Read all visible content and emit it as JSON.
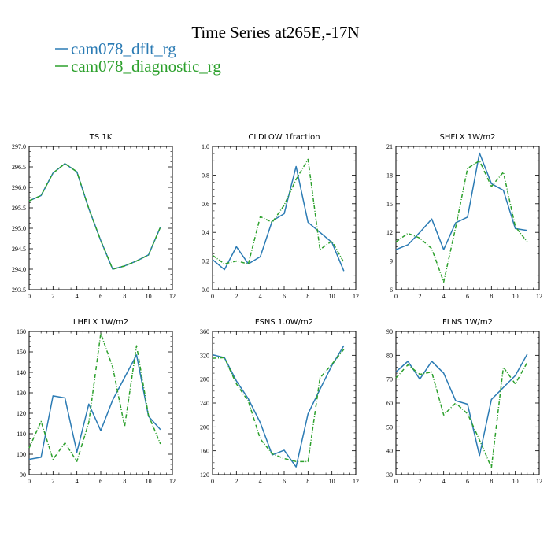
{
  "figure": {
    "title": "Time Series at265E,-17N",
    "legend": [
      {
        "name": "cam078_dflt_rg",
        "color": "#2b7bb4",
        "dash": "solid"
      },
      {
        "name": "cam078_diagnostic_rg",
        "color": "#2ca02c",
        "dash": "dashdot"
      }
    ]
  },
  "chart_data": [
    {
      "type": "line",
      "title": "TS 1K",
      "x": [
        0,
        1,
        2,
        3,
        4,
        5,
        6,
        7,
        8,
        9,
        10,
        11
      ],
      "xlim": [
        0,
        12
      ],
      "xticks": [
        0,
        2,
        4,
        6,
        8,
        10,
        12
      ],
      "ylim": [
        293.5,
        297.0
      ],
      "yticks": [
        "293.5",
        "294.0",
        "294.5",
        "295.0",
        "295.5",
        "296.0",
        "296.5",
        "297.0"
      ],
      "series": [
        {
          "name": "cam078_dflt_rg",
          "values": [
            295.67,
            295.8,
            296.35,
            296.58,
            296.38,
            295.48,
            294.7,
            294.0,
            294.08,
            294.2,
            294.35,
            295.03
          ]
        },
        {
          "name": "cam078_diagnostic_rg",
          "values": [
            295.67,
            295.8,
            296.35,
            296.58,
            296.38,
            295.48,
            294.7,
            294.0,
            294.08,
            294.2,
            294.35,
            295.03
          ]
        }
      ]
    },
    {
      "type": "line",
      "title": "CLDLOW 1fraction",
      "x": [
        0,
        1,
        2,
        3,
        4,
        5,
        6,
        7,
        8,
        9,
        10,
        11
      ],
      "xlim": [
        0,
        12
      ],
      "xticks": [
        0,
        2,
        4,
        6,
        8,
        10,
        12
      ],
      "ylim": [
        0.0,
        1.0
      ],
      "yticks": [
        "0.0",
        "0.2",
        "0.4",
        "0.6",
        "0.8",
        "1.0"
      ],
      "series": [
        {
          "name": "cam078_dflt_rg",
          "values": [
            0.21,
            0.14,
            0.3,
            0.18,
            0.23,
            0.48,
            0.53,
            0.86,
            0.47,
            0.4,
            0.33,
            0.13
          ]
        },
        {
          "name": "cam078_diagnostic_rg",
          "values": [
            0.24,
            0.18,
            0.2,
            0.18,
            0.51,
            0.47,
            0.59,
            0.77,
            0.91,
            0.28,
            0.34,
            0.19
          ]
        }
      ]
    },
    {
      "type": "line",
      "title": "SHFLX 1W/m2",
      "x": [
        0,
        1,
        2,
        3,
        4,
        5,
        6,
        7,
        8,
        9,
        10,
        11
      ],
      "xlim": [
        0,
        12
      ],
      "xticks": [
        0,
        2,
        4,
        6,
        8,
        10,
        12
      ],
      "ylim": [
        6,
        21
      ],
      "yticks": [
        "6",
        "9",
        "12",
        "15",
        "18",
        "21"
      ],
      "series": [
        {
          "name": "cam078_dflt_rg",
          "values": [
            10.2,
            10.7,
            12.0,
            13.4,
            10.2,
            13.0,
            13.6,
            20.3,
            17.1,
            16.4,
            12.4,
            12.2
          ]
        },
        {
          "name": "cam078_diagnostic_rg",
          "values": [
            11.0,
            11.9,
            11.4,
            10.3,
            6.8,
            12.5,
            18.7,
            19.5,
            16.8,
            18.3,
            12.6,
            11.0
          ]
        }
      ]
    },
    {
      "type": "line",
      "title": "LHFLX 1W/m2",
      "x": [
        0,
        1,
        2,
        3,
        4,
        5,
        6,
        7,
        8,
        9,
        10,
        11
      ],
      "xlim": [
        0,
        12
      ],
      "xticks": [
        0,
        2,
        4,
        6,
        8,
        10,
        12
      ],
      "ylim": [
        90,
        160
      ],
      "yticks": [
        "90",
        "100",
        "110",
        "120",
        "130",
        "140",
        "150",
        "160"
      ],
      "series": [
        {
          "name": "cam078_dflt_rg",
          "values": [
            97.5,
            98.5,
            128.5,
            127.5,
            101.0,
            124.5,
            111.5,
            126.5,
            137.5,
            148.5,
            118.5,
            112.0
          ]
        },
        {
          "name": "cam078_diagnostic_rg",
          "values": [
            103.0,
            116.0,
            97.5,
            105.5,
            96.5,
            115.5,
            159.0,
            142.5,
            113.5,
            153.0,
            119.0,
            105.0
          ]
        }
      ]
    },
    {
      "type": "line",
      "title": "FSNS 1.0W/m2",
      "x": [
        0,
        1,
        2,
        3,
        4,
        5,
        6,
        7,
        8,
        9,
        10,
        11
      ],
      "xlim": [
        0,
        12
      ],
      "xticks": [
        0,
        2,
        4,
        6,
        8,
        10,
        12
      ],
      "ylim": [
        120,
        360
      ],
      "yticks": [
        "120",
        "160",
        "200",
        "240",
        "280",
        "320",
        "360"
      ],
      "series": [
        {
          "name": "cam078_dflt_rg",
          "values": [
            321,
            316,
            277,
            247,
            207,
            153,
            161,
            133,
            222,
            263,
            303,
            336
          ]
        },
        {
          "name": "cam078_diagnostic_rg",
          "values": [
            315,
            316,
            272,
            243,
            180,
            155,
            147,
            142,
            142,
            282,
            305,
            330
          ]
        }
      ]
    },
    {
      "type": "line",
      "title": "FLNS 1W/m2",
      "x": [
        0,
        1,
        2,
        3,
        4,
        5,
        6,
        7,
        8,
        9,
        10,
        11
      ],
      "xlim": [
        0,
        12
      ],
      "xticks": [
        0,
        2,
        4,
        6,
        8,
        10,
        12
      ],
      "ylim": [
        30,
        90
      ],
      "yticks": [
        "30",
        "40",
        "50",
        "60",
        "70",
        "80",
        "90"
      ],
      "series": [
        {
          "name": "cam078_dflt_rg",
          "values": [
            73.0,
            77.5,
            70.0,
            77.5,
            72.5,
            61.0,
            59.5,
            38.0,
            61.5,
            66.5,
            71.5,
            80.5
          ]
        },
        {
          "name": "cam078_diagnostic_rg",
          "values": [
            70.5,
            76.0,
            72.0,
            73.0,
            55.0,
            60.0,
            55.5,
            44.5,
            33.0,
            75.0,
            68.0,
            77.0
          ]
        }
      ]
    }
  ]
}
